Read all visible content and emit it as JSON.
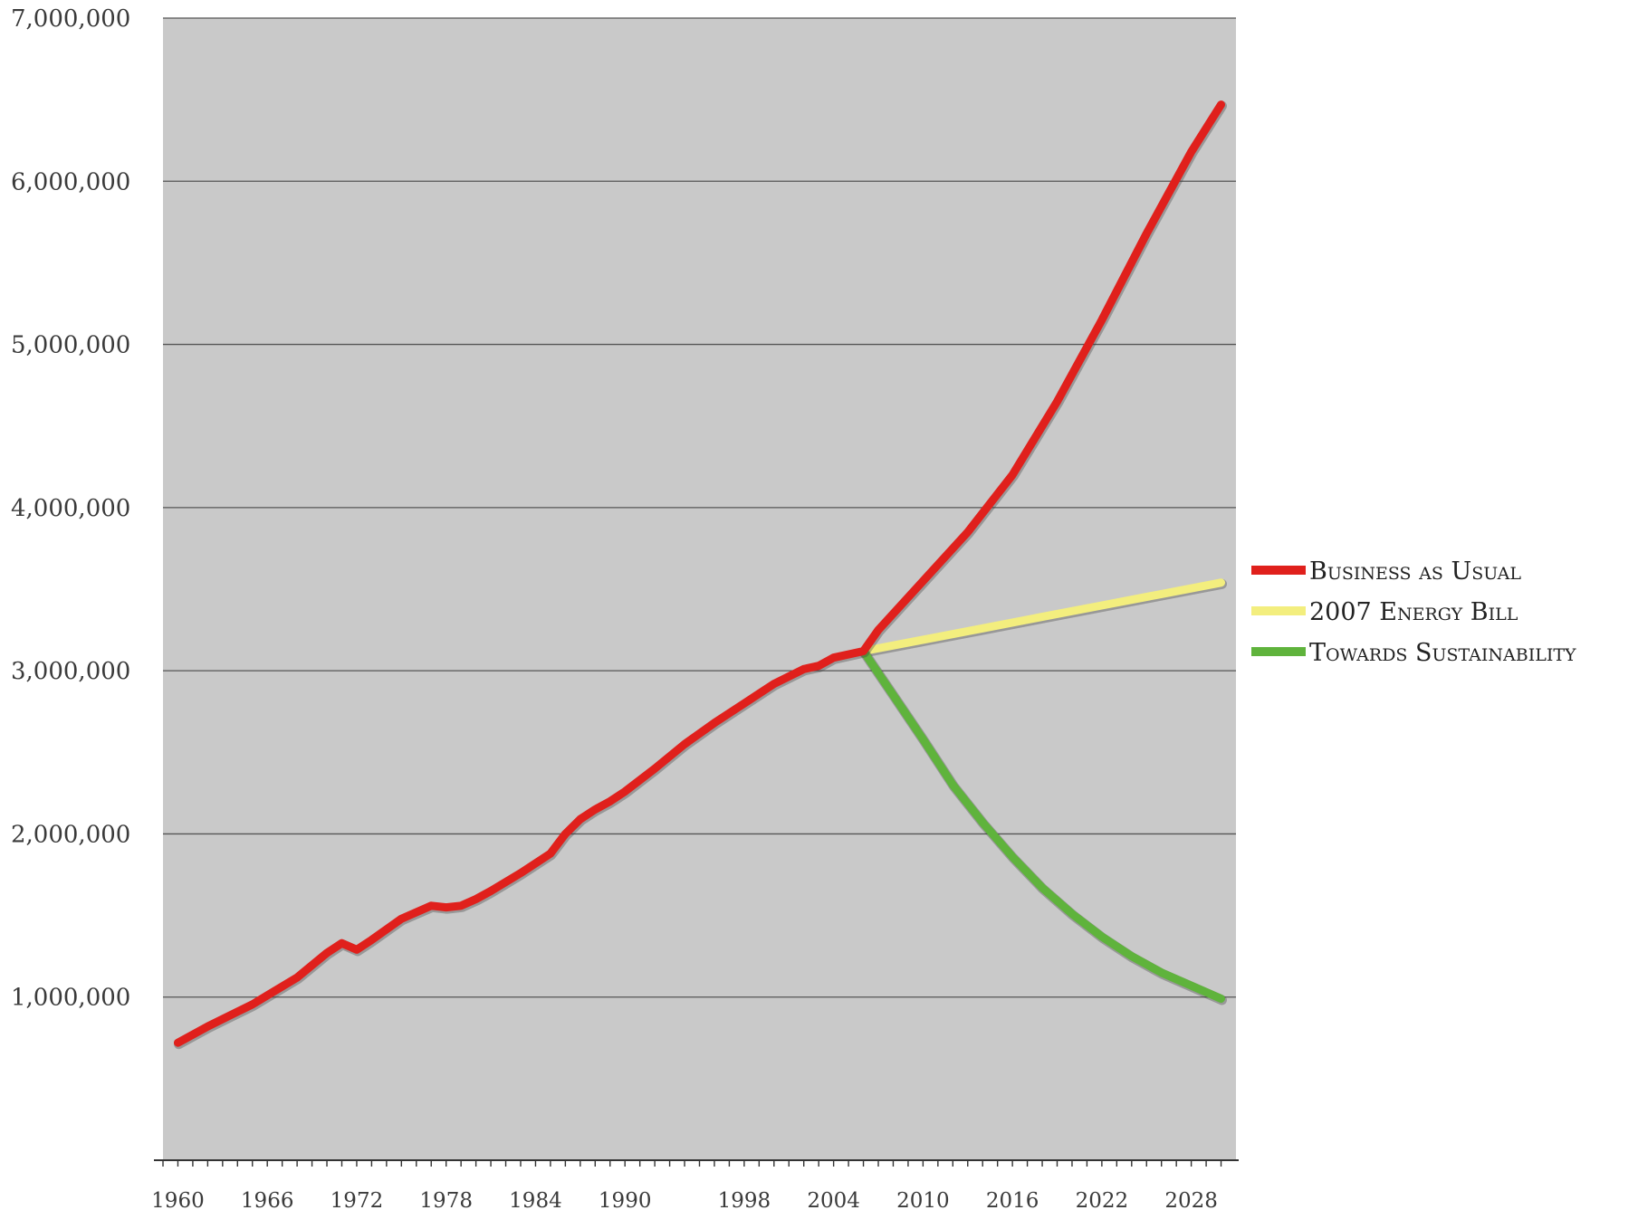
{
  "chart_data": {
    "type": "line",
    "title": "",
    "xlabel": "",
    "ylabel": "",
    "xlim": [
      1959,
      2031
    ],
    "ylim": [
      0,
      7000000
    ],
    "grid": true,
    "legend_position": "right",
    "background_color": "#c9c9c9",
    "y_ticks": [
      {
        "value": 1000000,
        "label": "1,000,000"
      },
      {
        "value": 2000000,
        "label": "2,000,000"
      },
      {
        "value": 3000000,
        "label": "3,000,000"
      },
      {
        "value": 4000000,
        "label": "4,000,000"
      },
      {
        "value": 5000000,
        "label": "5,000,000"
      },
      {
        "value": 6000000,
        "label": "6,000,000"
      },
      {
        "value": 7000000,
        "label": "7,000,000"
      }
    ],
    "x_ticks": [
      {
        "value": 1960,
        "label": "1960"
      },
      {
        "value": 1966,
        "label": "1966"
      },
      {
        "value": 1972,
        "label": "1972"
      },
      {
        "value": 1978,
        "label": "1978"
      },
      {
        "value": 1984,
        "label": "1984"
      },
      {
        "value": 1990,
        "label": "1990"
      },
      {
        "value": 1998,
        "label": "1998"
      },
      {
        "value": 2004,
        "label": "2004"
      },
      {
        "value": 2010,
        "label": "2010"
      },
      {
        "value": 2016,
        "label": "2016"
      },
      {
        "value": 2022,
        "label": "2022"
      },
      {
        "value": 2028,
        "label": "2028"
      }
    ],
    "series": [
      {
        "name": "Business as Usual",
        "color": "#e0201c",
        "x": [
          1960,
          1962,
          1964,
          1965,
          1966,
          1968,
          1970,
          1971,
          1972,
          1973,
          1975,
          1977,
          1978,
          1979,
          1980,
          1981,
          1983,
          1985,
          1986,
          1987,
          1988,
          1989,
          1990,
          1992,
          1994,
          1996,
          1998,
          2000,
          2002,
          2003,
          2004,
          2006,
          2007,
          2010,
          2013,
          2016,
          2019,
          2022,
          2025,
          2028,
          2030
        ],
        "y": [
          720000,
          820000,
          910000,
          955000,
          1010000,
          1120000,
          1270000,
          1330000,
          1290000,
          1350000,
          1480000,
          1560000,
          1550000,
          1560000,
          1600000,
          1650000,
          1760000,
          1880000,
          2000000,
          2090000,
          2150000,
          2200000,
          2260000,
          2400000,
          2550000,
          2680000,
          2800000,
          2920000,
          3010000,
          3030000,
          3080000,
          3120000,
          3250000,
          3550000,
          3850000,
          4200000,
          4650000,
          5150000,
          5680000,
          6180000,
          6470000
        ]
      },
      {
        "name": "2007 Energy Bill",
        "color": "#f3ee7e",
        "x": [
          2006,
          2010,
          2014,
          2018,
          2022,
          2026,
          2030
        ],
        "y": [
          3120000,
          3190000,
          3260000,
          3330000,
          3400000,
          3470000,
          3540000
        ]
      },
      {
        "name": "Towards Sustainability",
        "color": "#5fb33c",
        "x": [
          2006,
          2008,
          2010,
          2012,
          2014,
          2016,
          2018,
          2020,
          2022,
          2024,
          2026,
          2028,
          2030
        ],
        "y": [
          3120000,
          2850000,
          2580000,
          2300000,
          2070000,
          1860000,
          1670000,
          1510000,
          1370000,
          1250000,
          1150000,
          1070000,
          990000
        ]
      }
    ]
  }
}
